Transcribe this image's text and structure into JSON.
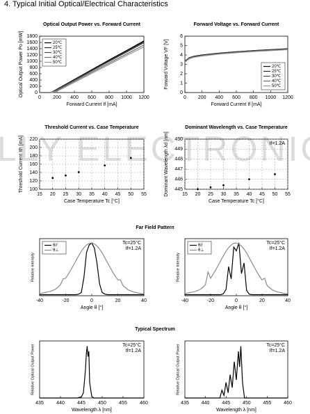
{
  "heading": "4. Typical Initial Optical/Electrical Characteristics",
  "watermark": "LLY ELECTRONIC",
  "far_field_title": "Far Field Pattern",
  "spectrum_title": "Typical Spectrum",
  "chart_data": [
    {
      "type": "line",
      "title": "Optical Output Power vs. Forward Current",
      "x_label": "Forward Current If [mA]",
      "y_label": "Optical Output Power Po [mW]",
      "x": [
        0,
        130,
        200,
        400,
        600,
        800,
        1000,
        1200
      ],
      "series": [
        {
          "name": "20℃",
          "color": "#000000",
          "values": [
            0,
            0,
            110,
            420,
            730,
            1040,
            1340,
            1650
          ]
        },
        {
          "name": "25℃",
          "color": "#2a2a2a",
          "values": [
            0,
            0,
            100,
            405,
            710,
            1015,
            1315,
            1620
          ]
        },
        {
          "name": "30℃",
          "color": "#4a4a4a",
          "values": [
            0,
            0,
            90,
            390,
            690,
            990,
            1290,
            1590
          ]
        },
        {
          "name": "40℃",
          "color": "#6e6e6e",
          "values": [
            0,
            0,
            65,
            360,
            650,
            940,
            1230,
            1520
          ]
        },
        {
          "name": "50℃",
          "color": "#939393",
          "values": [
            0,
            0,
            40,
            325,
            610,
            895,
            1180,
            1460
          ]
        }
      ],
      "xlim": [
        0,
        1200
      ],
      "xticks": [
        0,
        200,
        400,
        600,
        800,
        1000,
        1200
      ],
      "ylim": [
        0,
        1800
      ],
      "yticks": [
        0,
        200,
        400,
        600,
        800,
        1000,
        1200,
        1400,
        1600,
        1800
      ],
      "legend": "upper left"
    },
    {
      "type": "line",
      "title": "Forward Voltage vs. Forward Current",
      "x_label": "Forward Current If [mA]",
      "y_label": "Forward Voltage VF [V]",
      "x": [
        0,
        50,
        100,
        200,
        400,
        600,
        800,
        1000,
        1200
      ],
      "series": [
        {
          "name": "20℃",
          "color": "#000000",
          "values": [
            3.35,
            3.7,
            3.85,
            4.0,
            4.2,
            4.35,
            4.47,
            4.57,
            4.67
          ]
        },
        {
          "name": "25℃",
          "color": "#2a2a2a",
          "values": [
            3.33,
            3.68,
            3.83,
            3.98,
            4.18,
            4.33,
            4.45,
            4.55,
            4.65
          ]
        },
        {
          "name": "30℃",
          "color": "#4a4a4a",
          "values": [
            3.3,
            3.65,
            3.8,
            3.95,
            4.15,
            4.3,
            4.42,
            4.52,
            4.62
          ]
        },
        {
          "name": "40℃",
          "color": "#6e6e6e",
          "values": [
            3.27,
            3.62,
            3.77,
            3.92,
            4.12,
            4.27,
            4.39,
            4.49,
            4.59
          ]
        },
        {
          "name": "50℃",
          "color": "#939393",
          "values": [
            3.24,
            3.59,
            3.74,
            3.89,
            4.09,
            4.24,
            4.36,
            4.46,
            4.56
          ]
        }
      ],
      "xlim": [
        0,
        1200
      ],
      "xticks": [
        0,
        200,
        400,
        600,
        800,
        1000,
        1200
      ],
      "ylim": [
        0,
        6
      ],
      "yticks": [
        0,
        1,
        2,
        3,
        4,
        5,
        6
      ],
      "legend": "lower right"
    },
    {
      "type": "scatter",
      "title": "Threshold Current vs. Case Temperature",
      "x_label": "Case Temperature Tc [°C]",
      "y_label": "Threshold Current Ith [mA]",
      "x": [
        20,
        25,
        30,
        40,
        50
      ],
      "values": [
        127,
        133,
        141,
        157,
        175
      ],
      "color": "#000000",
      "xlim": [
        15,
        55
      ],
      "xticks": [
        15,
        20,
        25,
        30,
        35,
        40,
        45,
        50,
        55
      ],
      "ylim": [
        100,
        220
      ],
      "yticks": [
        100,
        120,
        140,
        160,
        180,
        200,
        220
      ],
      "grid": true
    },
    {
      "type": "scatter",
      "title": "Dominant Wavelength vs. Case Temperature",
      "x_label": "Case Temperature Tc [°C]",
      "y_label": "Dominant Wavelength λd [nm]",
      "annotations": [
        "If=1.2A"
      ],
      "x": [
        20,
        25,
        30,
        40,
        50
      ],
      "values": [
        445.0,
        445.2,
        445.4,
        446.0,
        446.5
      ],
      "color": "#000000",
      "xlim": [
        15,
        55
      ],
      "xticks": [
        15,
        20,
        25,
        30,
        35,
        40,
        45,
        50,
        55
      ],
      "ylim": [
        445,
        450
      ],
      "yticks": [
        445,
        446,
        447,
        448,
        449,
        450
      ],
      "grid": true
    },
    {
      "type": "line",
      "x_label": "Angle θ [°]",
      "y_label": "Relative Intensity",
      "annotations": [
        "Tc=25°C",
        "If=1.2A"
      ],
      "x": [
        -40,
        -38,
        -36,
        -34,
        -32,
        -30,
        -28,
        -26,
        -24,
        -22,
        -20,
        -18,
        -16,
        -14,
        -12,
        -10,
        -8,
        -6,
        -4,
        -2,
        0,
        2,
        4,
        6,
        8,
        10,
        12,
        14,
        16,
        18,
        20,
        22,
        24,
        26,
        28,
        30,
        32,
        34,
        36,
        38,
        40
      ],
      "series": [
        {
          "name": "θ//",
          "color": "#000000",
          "values": [
            0.02,
            0.02,
            0.02,
            0.02,
            0.02,
            0.02,
            0.02,
            0.02,
            0.02,
            0.02,
            0.02,
            0.02,
            0.02,
            0.02,
            0.02,
            0.03,
            0.06,
            0.35,
            0.82,
            0.96,
            1.0,
            0.9,
            0.62,
            0.22,
            0.06,
            0.03,
            0.02,
            0.02,
            0.02,
            0.02,
            0.02,
            0.02,
            0.02,
            0.02,
            0.02,
            0.02,
            0.02,
            0.02,
            0.02,
            0.02,
            0.02
          ]
        },
        {
          "name": "θ⊥",
          "color": "#8c8c8c",
          "values": [
            0.04,
            0.05,
            0.06,
            0.07,
            0.08,
            0.1,
            0.12,
            0.16,
            0.21,
            0.32,
            0.33,
            0.41,
            0.49,
            0.58,
            0.67,
            0.76,
            0.84,
            0.91,
            0.96,
            0.99,
            1.0,
            0.98,
            0.94,
            0.88,
            0.81,
            0.72,
            0.63,
            0.54,
            0.45,
            0.37,
            0.3,
            0.3,
            0.19,
            0.15,
            0.11,
            0.09,
            0.07,
            0.06,
            0.05,
            0.04,
            0.04
          ]
        }
      ],
      "xlim": [
        -40,
        40
      ],
      "xticks": [
        -40,
        -20,
        0,
        20,
        40
      ],
      "ylim": [
        0,
        1.08
      ],
      "legend": "upper left"
    },
    {
      "type": "line",
      "x_label": "Angle θ [°]",
      "y_label": "Relative Intensity",
      "annotations": [
        "Tc=25°C",
        "If=1.2A"
      ],
      "x": [
        -40,
        -38,
        -36,
        -34,
        -32,
        -30,
        -28,
        -26,
        -24,
        -22,
        -20,
        -18,
        -16,
        -14,
        -12,
        -10,
        -8,
        -6,
        -4,
        -2,
        0,
        2,
        4,
        6,
        8,
        10,
        12,
        14,
        16,
        18,
        20,
        22,
        24,
        26,
        28,
        30,
        32,
        34,
        36,
        38,
        40
      ],
      "series": [
        {
          "name": "θ//",
          "color": "#000000",
          "values": [
            0.02,
            0.02,
            0.02,
            0.02,
            0.02,
            0.02,
            0.02,
            0.02,
            0.02,
            0.02,
            0.02,
            0.02,
            0.02,
            0.02,
            0.02,
            0.04,
            0.12,
            0.55,
            0.32,
            0.92,
            0.85,
            1.0,
            0.42,
            0.62,
            0.1,
            0.03,
            0.02,
            0.02,
            0.02,
            0.02,
            0.02,
            0.02,
            0.02,
            0.02,
            0.02,
            0.02,
            0.02,
            0.02,
            0.02,
            0.02,
            0.02
          ]
        },
        {
          "name": "θ⊥",
          "color": "#8c8c8c",
          "values": [
            0.04,
            0.05,
            0.06,
            0.07,
            0.08,
            0.1,
            0.12,
            0.16,
            0.21,
            0.45,
            0.33,
            0.41,
            0.49,
            0.58,
            0.67,
            0.76,
            0.84,
            0.91,
            0.96,
            0.99,
            1.0,
            0.98,
            0.94,
            0.88,
            0.81,
            0.72,
            0.63,
            0.54,
            0.45,
            0.37,
            0.3,
            0.33,
            0.19,
            0.15,
            0.11,
            0.09,
            0.07,
            0.06,
            0.05,
            0.04,
            0.04
          ]
        }
      ],
      "xlim": [
        -40,
        40
      ],
      "xticks": [
        -40,
        -20,
        0,
        20,
        40
      ],
      "ylim": [
        0,
        1.08
      ],
      "legend": "upper left"
    },
    {
      "type": "line",
      "x_label": "Wavelength λ [nm]",
      "y_label": "Relative Optical Output Power",
      "annotations": [
        "Tc=25°C",
        "If=1.2A"
      ],
      "x": [
        435,
        444,
        445,
        445.5,
        446,
        446.2,
        446.4,
        446.6,
        446.8,
        447,
        447.5,
        448,
        460
      ],
      "series": [
        {
          "name": "spectrum",
          "color": "#000000",
          "values": [
            0,
            0,
            0.02,
            0.1,
            0.55,
            0.85,
            1.0,
            0.8,
            0.9,
            0.3,
            0.03,
            0,
            0
          ]
        }
      ],
      "xlim": [
        435,
        460
      ],
      "xticks": [
        435,
        440,
        445,
        450,
        455,
        460
      ],
      "ylim": [
        0,
        1.1
      ]
    },
    {
      "type": "line",
      "x_label": "Wavelength λ [nm]",
      "y_label": "Relative Optical Output Power",
      "annotations": [
        "Tc=25°C",
        "If=1.2A"
      ],
      "x": [
        435,
        443.5,
        444,
        444.5,
        445,
        445.5,
        446,
        446.5,
        447,
        447.5,
        448,
        448.3,
        448.6,
        449,
        449.5,
        460
      ],
      "series": [
        {
          "name": "spectrum",
          "color": "#000000",
          "values": [
            0,
            0,
            0.15,
            0.05,
            0.3,
            0.1,
            0.45,
            0.2,
            0.7,
            0.35,
            0.9,
            0.6,
            1.0,
            0.3,
            0,
            0
          ]
        }
      ],
      "xlim": [
        435,
        460
      ],
      "xticks": [
        435,
        440,
        445,
        450,
        455,
        460
      ],
      "ylim": [
        0,
        1.1
      ]
    }
  ]
}
